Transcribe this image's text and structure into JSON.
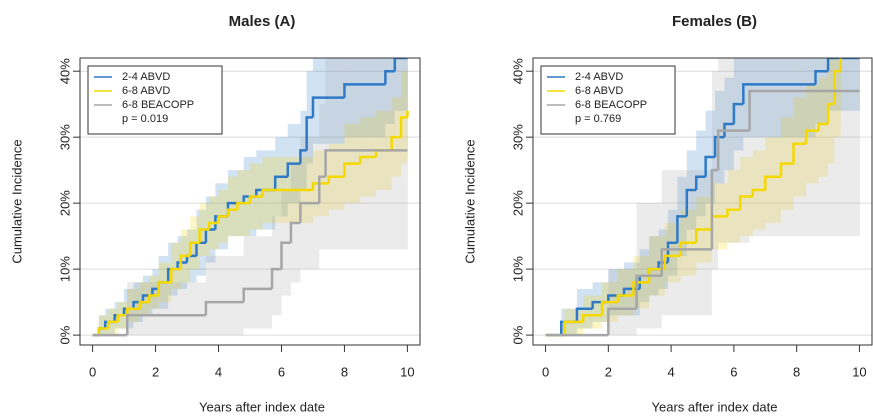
{
  "chart_data": [
    {
      "type": "step",
      "title": "Males (A)",
      "xlabel": "Years after index date",
      "ylabel": "Cumulative Incidence",
      "xlim": [
        -0.4,
        10.4
      ],
      "ylim": [
        -1.5,
        42
      ],
      "xticks": [
        0,
        2,
        4,
        6,
        8,
        10
      ],
      "yticks": [
        {
          "value": 0,
          "label": "0%"
        },
        {
          "value": 10,
          "label": "10%"
        },
        {
          "value": 20,
          "label": "20%"
        },
        {
          "value": 30,
          "label": "30%"
        },
        {
          "value": 40,
          "label": "40%"
        }
      ],
      "grid": true,
      "legend": "top-left",
      "annotation": "p = 0.019",
      "series": [
        {
          "name": "2-4 ABVD",
          "color": "#2e7ac6",
          "x": [
            0,
            0.2,
            0.4,
            0.7,
            1.0,
            1.3,
            1.6,
            1.9,
            2.1,
            2.4,
            2.7,
            3.0,
            3.3,
            3.6,
            3.9,
            4.3,
            4.8,
            5.2,
            5.8,
            6.2,
            6.6,
            6.8,
            7.0,
            8.0,
            9.3,
            9.6,
            10
          ],
          "values": [
            0,
            1,
            2,
            3,
            4,
            5,
            6,
            7,
            8,
            10,
            11,
            12,
            14,
            16,
            18,
            20,
            21,
            22,
            24,
            26,
            28,
            33,
            36,
            38,
            40,
            42,
            42
          ],
          "lower": [
            0,
            0,
            0,
            1,
            1,
            2,
            3,
            4,
            4,
            6,
            7,
            8,
            9,
            11,
            13,
            15,
            15,
            16,
            18,
            20,
            22,
            26,
            29,
            30,
            32,
            34,
            34
          ],
          "upper": [
            0,
            3,
            4,
            5,
            7,
            8,
            9,
            10,
            12,
            14,
            15,
            16,
            19,
            21,
            23,
            25,
            27,
            28,
            30,
            32,
            34,
            40,
            42,
            42,
            42,
            42,
            42
          ]
        },
        {
          "name": "6-8 ABVD",
          "color": "#f5d800",
          "x": [
            0,
            0.2,
            0.5,
            0.8,
            1.1,
            1.5,
            1.8,
            2.1,
            2.5,
            2.8,
            3.1,
            3.4,
            3.7,
            4.0,
            4.3,
            4.6,
            5.0,
            5.4,
            6.5,
            7.0,
            7.5,
            8.0,
            8.5,
            9.0,
            9.5,
            9.8,
            10
          ],
          "values": [
            0,
            1,
            2,
            3,
            4,
            5,
            6,
            8,
            10,
            12,
            14,
            16,
            17,
            18,
            19,
            20,
            21,
            22,
            22,
            23,
            24,
            26,
            27,
            28,
            30,
            33,
            34
          ],
          "lower": [
            0,
            0,
            0,
            1,
            2,
            3,
            4,
            5,
            7,
            8,
            10,
            12,
            13,
            14,
            15,
            15,
            16,
            17,
            17,
            18,
            19,
            20,
            21,
            22,
            24,
            26,
            27
          ],
          "upper": [
            0,
            3,
            4,
            5,
            7,
            8,
            9,
            11,
            14,
            16,
            18,
            20,
            21,
            22,
            24,
            25,
            26,
            27,
            27,
            28,
            29,
            32,
            33,
            34,
            36,
            40,
            41
          ]
        },
        {
          "name": "6-8 BEACOPP",
          "color": "#a6a6a6",
          "x": [
            0,
            1.1,
            3.6,
            4.8,
            5.7,
            6.0,
            6.3,
            6.6,
            7.2,
            7.4,
            9.9,
            10
          ],
          "values": [
            0,
            3,
            5,
            7,
            10,
            14,
            17,
            20,
            24,
            28,
            28,
            28
          ],
          "lower": [
            0,
            0,
            0,
            1,
            3,
            6,
            8,
            10,
            13,
            13,
            13,
            13
          ],
          "upper": [
            0,
            8,
            12,
            15,
            18,
            22,
            26,
            30,
            35,
            42,
            42,
            42
          ]
        }
      ]
    },
    {
      "type": "step",
      "title": "Females (B)",
      "xlabel": "Years after index date",
      "ylabel": "Cumulative Incidence",
      "xlim": [
        -0.4,
        10.4
      ],
      "ylim": [
        -1.5,
        42
      ],
      "xticks": [
        0,
        2,
        4,
        6,
        8,
        10
      ],
      "yticks": [
        {
          "value": 0,
          "label": "0%"
        },
        {
          "value": 10,
          "label": "10%"
        },
        {
          "value": 20,
          "label": "20%"
        },
        {
          "value": 30,
          "label": "30%"
        },
        {
          "value": 40,
          "label": "40%"
        }
      ],
      "grid": true,
      "legend": "top-left",
      "annotation": "p = 0.769",
      "series": [
        {
          "name": "2-4 ABVD",
          "color": "#2e7ac6",
          "x": [
            0,
            0.5,
            1.0,
            1.5,
            2.0,
            2.5,
            3.0,
            3.3,
            3.6,
            3.9,
            4.2,
            4.5,
            4.8,
            5.1,
            5.4,
            5.7,
            6.0,
            6.3,
            8.2,
            8.6,
            9.0,
            10
          ],
          "values": [
            0,
            2,
            4,
            5,
            6,
            7,
            9,
            10,
            11,
            14,
            18,
            22,
            24,
            27,
            30,
            32,
            35,
            38,
            38,
            40,
            42,
            42
          ],
          "lower": [
            0,
            0,
            1,
            2,
            3,
            3,
            5,
            6,
            7,
            9,
            12,
            16,
            18,
            20,
            23,
            25,
            28,
            30,
            30,
            32,
            34,
            34
          ],
          "upper": [
            0,
            4,
            7,
            8,
            10,
            11,
            13,
            15,
            16,
            19,
            24,
            28,
            31,
            34,
            37,
            39,
            42,
            42,
            42,
            42,
            42,
            42
          ]
        },
        {
          "name": "6-8 ABVD",
          "color": "#f5d800",
          "x": [
            0,
            0.6,
            1.2,
            1.8,
            2.3,
            2.8,
            3.3,
            3.8,
            4.3,
            4.8,
            5.3,
            5.8,
            6.2,
            6.6,
            7.0,
            7.5,
            7.9,
            8.3,
            8.7,
            9.0,
            9.2,
            9.4
          ],
          "values": [
            0,
            2,
            3,
            5,
            6,
            8,
            10,
            12,
            14,
            16,
            18,
            19,
            21,
            22,
            24,
            26,
            29,
            31,
            32,
            35,
            40,
            42
          ],
          "lower": [
            0,
            0,
            1,
            2,
            3,
            4,
            6,
            8,
            9,
            11,
            13,
            14,
            15,
            16,
            17,
            19,
            21,
            23,
            24,
            26,
            30,
            32
          ],
          "upper": [
            0,
            4,
            6,
            8,
            10,
            12,
            15,
            17,
            19,
            21,
            23,
            25,
            27,
            28,
            30,
            33,
            36,
            38,
            39,
            42,
            42,
            42
          ]
        },
        {
          "name": "6-8 BEACOPP",
          "color": "#a6a6a6",
          "x": [
            0,
            2.0,
            2.9,
            3.7,
            5.3,
            5.5,
            6.5,
            9.0,
            10
          ],
          "values": [
            0,
            4,
            9,
            13,
            25,
            31,
            37,
            37,
            37
          ],
          "lower": [
            0,
            0,
            1,
            3,
            10,
            14,
            15,
            15,
            15
          ],
          "upper": [
            0,
            10,
            20,
            25,
            40,
            42,
            42,
            42,
            42
          ]
        }
      ]
    }
  ]
}
